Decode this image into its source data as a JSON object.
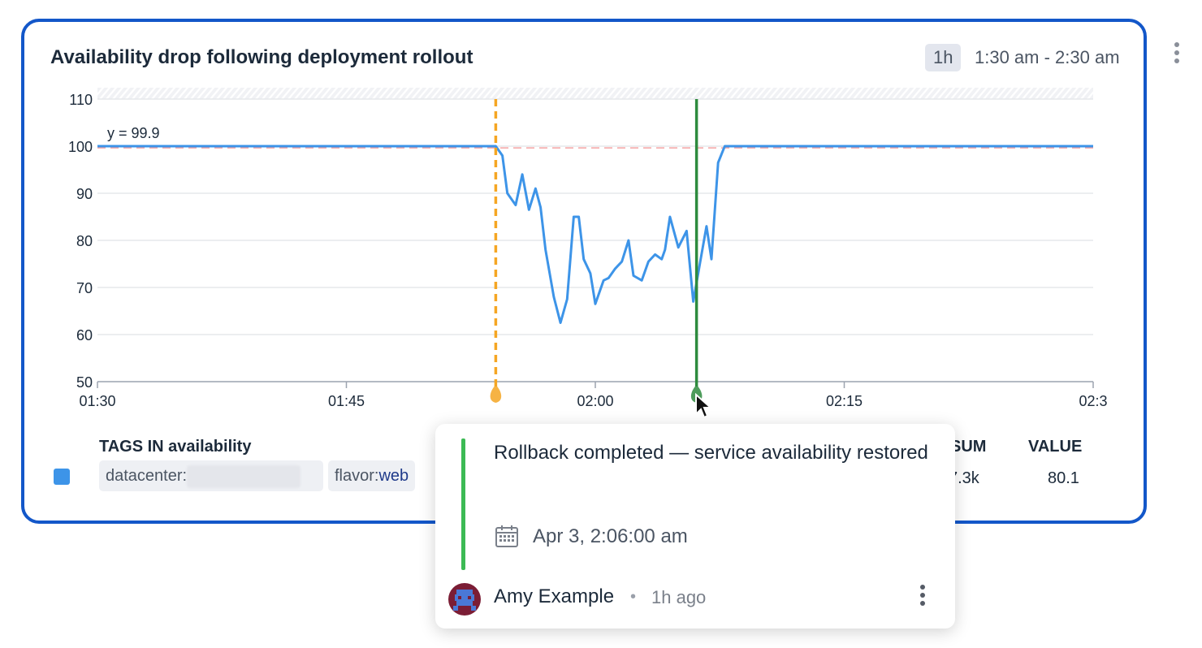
{
  "widget": {
    "title": "Availability drop following deployment rollout",
    "span": "1h",
    "range": "1:30 am - 2:30 am"
  },
  "chart_data": {
    "type": "line",
    "ylim": [
      50,
      110
    ],
    "yticks": [
      50,
      60,
      70,
      80,
      90,
      100,
      110
    ],
    "xticks": [
      "01:30",
      "01:45",
      "02:00",
      "02:15",
      "02:3"
    ],
    "xrange_minutes": [
      0,
      60
    ],
    "marker_label": "y = 99.9",
    "marker_value": 99.9,
    "series": [
      {
        "color": "#3d94e8",
        "x": [
          0,
          24,
          24.4,
          24.7,
          25.2,
          25.6,
          26.0,
          26.4,
          26.7,
          27.0,
          27.5,
          27.9,
          28.3,
          28.7,
          29.0,
          29.3,
          29.7,
          30.0,
          30.5,
          30.8,
          31.2,
          31.6,
          32.0,
          32.3,
          32.8,
          33.2,
          33.6,
          34.0,
          34.2,
          34.5,
          35.0,
          35.5,
          35.9,
          36.3,
          36.7,
          37.0,
          37.4,
          37.8,
          38.2,
          38.5,
          38.9,
          39.3,
          39.7,
          40.1,
          40.5,
          40.9,
          41.1,
          41.3,
          41.6,
          42.0,
          60
        ],
        "y": [
          100,
          100,
          98,
          90,
          87.5,
          94,
          86.5,
          91,
          87,
          78,
          68,
          62.5,
          67.5,
          85,
          85,
          76,
          73,
          66.5,
          71.5,
          72,
          74,
          75.5,
          80,
          72.5,
          71.5,
          75.5,
          77,
          76,
          78,
          85,
          78.5,
          82,
          67,
          75,
          83,
          76,
          96.5,
          100,
          100,
          100,
          100,
          100,
          100,
          100,
          100,
          100,
          100,
          100,
          100,
          100,
          100
        ]
      }
    ],
    "events": [
      {
        "minute": 24,
        "color": "#f5a623",
        "style": "dashed"
      },
      {
        "minute": 36.1,
        "color": "#2e8b3e",
        "style": "solid"
      }
    ]
  },
  "legend": {
    "tags_header": "TAGS IN availability",
    "sum_header": "SUM",
    "value_header": "VALUE",
    "tag1_key": "datacenter:",
    "tag2_key": "flavor:",
    "tag2_value": "web",
    "sum": "7.3k",
    "value": "80.1"
  },
  "popover": {
    "title": "Rollback completed — service availability restored",
    "date": "Apr 3, 2:06:00 am",
    "author": "Amy Example",
    "separator": "•",
    "ago": "1h ago",
    "accent": "#3cba54"
  }
}
